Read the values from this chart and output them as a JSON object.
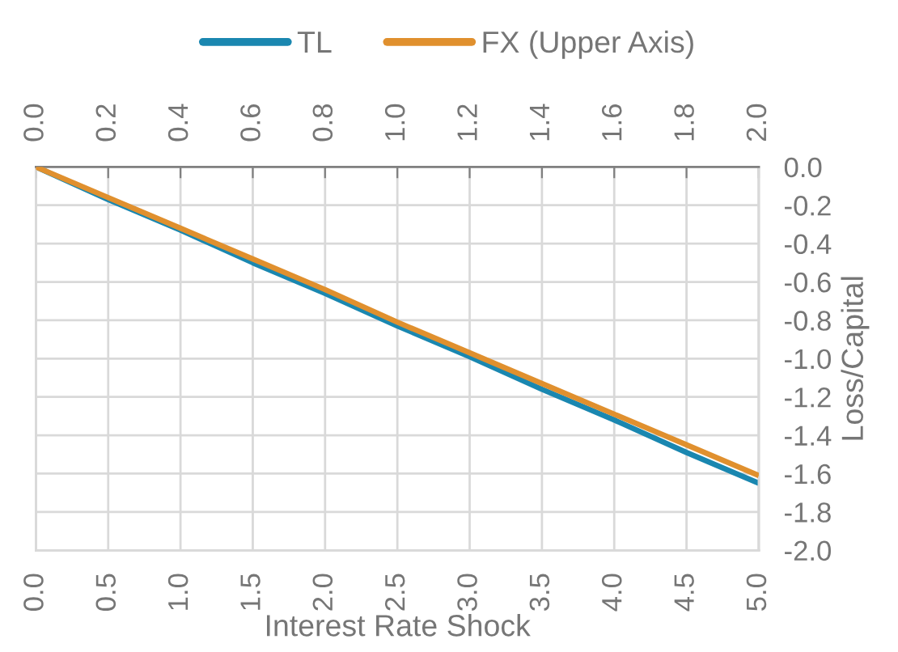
{
  "chart_data": {
    "type": "line",
    "xlabel": "Interest Rate Shock",
    "ylabel": "Loss/Capital",
    "series": [
      {
        "name": "TL",
        "color": "#1a87b0",
        "x": [
          0.0,
          0.5,
          1.0,
          1.5,
          2.0,
          2.5,
          3.0,
          3.5,
          4.0,
          4.5,
          5.0
        ],
        "values": [
          0.0,
          -0.17,
          -0.33,
          -0.5,
          -0.66,
          -0.83,
          -0.99,
          -1.16,
          -1.32,
          -1.49,
          -1.65
        ]
      },
      {
        "name": "FX (Upper Axis)",
        "color": "#e0902e",
        "axis": "x2",
        "x": [
          0.0,
          0.2,
          0.4,
          0.6,
          0.8,
          1.0,
          1.2,
          1.4,
          1.6,
          1.8,
          2.0
        ],
        "values": [
          0.0,
          -0.16,
          -0.32,
          -0.48,
          -0.64,
          -0.81,
          -0.97,
          -1.13,
          -1.29,
          -1.45,
          -1.61
        ]
      }
    ],
    "xlim": [
      0,
      5
    ],
    "xticks": [
      {
        "value": 0,
        "label": "0.0"
      },
      0.5,
      {
        "value": 1,
        "label": "1.0"
      },
      1.5,
      {
        "value": 2,
        "label": "2.0"
      },
      2.5,
      {
        "value": 3,
        "label": "3.0"
      },
      3.5,
      {
        "value": 4,
        "label": "4.0"
      },
      4.5,
      {
        "value": 5,
        "label": "5.0"
      }
    ],
    "x2lim": [
      0,
      2
    ],
    "x2ticks": [
      {
        "value": 0,
        "label": "0.0"
      },
      0.2,
      0.4,
      0.6,
      0.8,
      {
        "value": 1,
        "label": "1.0"
      },
      1.2,
      1.4,
      1.6,
      1.8,
      {
        "value": 2,
        "label": "2.0"
      }
    ],
    "ylim": [
      -2,
      0
    ],
    "yticks": [
      {
        "value": 0,
        "label": "0.0"
      },
      -0.2,
      -0.4,
      -0.6,
      -0.8,
      {
        "value": -1,
        "label": "-1.0"
      },
      -1.2,
      -1.4,
      -1.6,
      -1.8,
      {
        "value": -2,
        "label": "-2.0"
      }
    ],
    "grid": true,
    "legend": "top",
    "marker": "none",
    "line_style": "solid"
  }
}
